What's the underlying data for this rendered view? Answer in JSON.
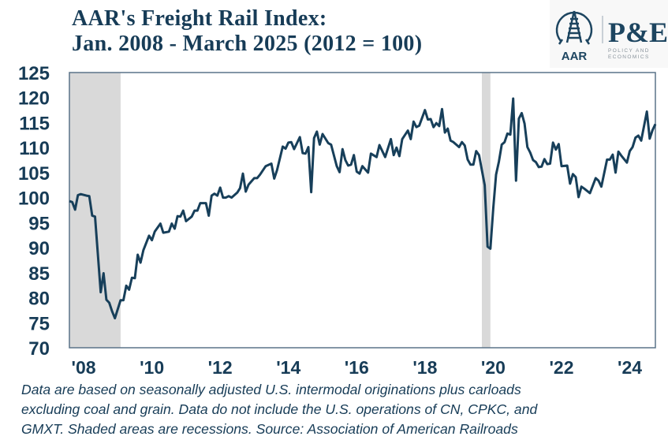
{
  "chart_data": {
    "type": "line",
    "title": [
      "AAR's Freight Rail Index:",
      "Jan. 2008 - March 2025 (2012 = 100)"
    ],
    "xlabel": "",
    "ylabel": "",
    "ylim": [
      70,
      125
    ],
    "xlim": [
      "2008-01",
      "2025-03"
    ],
    "yticks": [
      "125",
      "120",
      "115",
      "110",
      "105",
      "100",
      "95",
      "90",
      "85",
      "80",
      "75",
      "70"
    ],
    "xticks": [
      {
        "year": 2008,
        "label": "'08"
      },
      {
        "year": 2010,
        "label": "'10"
      },
      {
        "year": 2012,
        "label": "'12"
      },
      {
        "year": 2014,
        "label": "'14"
      },
      {
        "year": 2016,
        "label": "'16"
      },
      {
        "year": 2018,
        "label": "'18"
      },
      {
        "year": 2020,
        "label": "'20"
      },
      {
        "year": 2022,
        "label": "'22"
      },
      {
        "year": 2024,
        "label": "'24"
      }
    ],
    "grid": false,
    "legend": "none",
    "line_color": "#173f5a",
    "recession_color": "#d9d9d9",
    "recessions": [
      [
        "2008-01",
        "2009-06"
      ],
      [
        "2020-02",
        "2020-04"
      ]
    ],
    "series": [
      {
        "x": [
          "2008-01",
          "2008-02",
          "2008-03",
          "2008-04",
          "2008-05",
          "2008-07",
          "2008-08",
          "2008-09",
          "2008-10",
          "2008-12",
          "2009-01",
          "2009-02",
          "2009-03",
          "2009-04",
          "2009-05",
          "2009-07",
          "2009-08",
          "2009-09",
          "2009-10",
          "2009-11",
          "2009-12",
          "2010-01",
          "2010-02",
          "2010-03",
          "2010-05",
          "2010-06",
          "2010-07",
          "2010-09",
          "2010-10",
          "2010-12",
          "2011-01",
          "2011-02",
          "2011-03",
          "2011-04",
          "2011-05",
          "2011-06",
          "2011-08",
          "2011-09",
          "2011-10",
          "2011-11",
          "2012-01",
          "2012-02",
          "2012-03",
          "2012-04",
          "2012-05",
          "2012-06",
          "2012-07",
          "2012-08",
          "2012-09",
          "2012-10",
          "2012-12",
          "2013-01",
          "2013-02",
          "2013-03",
          "2013-04",
          "2013-06",
          "2013-07",
          "2013-08",
          "2013-10",
          "2013-12",
          "2014-01",
          "2014-02",
          "2014-04",
          "2014-05",
          "2014-06",
          "2014-07",
          "2014-08",
          "2014-10",
          "2014-11",
          "2014-12",
          "2015-01",
          "2015-02",
          "2015-03",
          "2015-04",
          "2015-05",
          "2015-06",
          "2015-08",
          "2015-09",
          "2015-11",
          "2015-12",
          "2016-01",
          "2016-02",
          "2016-03",
          "2016-04",
          "2016-05",
          "2016-06",
          "2016-07",
          "2016-08",
          "2016-10",
          "2016-11",
          "2017-01",
          "2017-02",
          "2017-04",
          "2017-06",
          "2017-07",
          "2017-08",
          "2017-09",
          "2017-10",
          "2017-12",
          "2018-01",
          "2018-02",
          "2018-03",
          "2018-04",
          "2018-06",
          "2018-07",
          "2018-08",
          "2018-09",
          "2018-10",
          "2018-11",
          "2018-12",
          "2019-01",
          "2019-02",
          "2019-03",
          "2019-04",
          "2019-06",
          "2019-07",
          "2019-08",
          "2019-09",
          "2019-10",
          "2019-11",
          "2019-12",
          "2020-01",
          "2020-03",
          "2020-04",
          "2020-05",
          "2020-06",
          "2020-07",
          "2020-08",
          "2020-09",
          "2020-10",
          "2020-11",
          "2020-12",
          "2021-01",
          "2021-02",
          "2021-03",
          "2021-04",
          "2021-05",
          "2021-06",
          "2021-07",
          "2021-08",
          "2021-09",
          "2021-10",
          "2021-11",
          "2021-12",
          "2022-01",
          "2022-02",
          "2022-03",
          "2022-04",
          "2022-05",
          "2022-06",
          "2022-08",
          "2022-09",
          "2022-10",
          "2022-11",
          "2022-12",
          "2023-01",
          "2023-02",
          "2023-04",
          "2023-06",
          "2023-07",
          "2023-08",
          "2023-10",
          "2023-11",
          "2023-12",
          "2024-01",
          "2024-02",
          "2024-03",
          "2024-05",
          "2024-06",
          "2024-07",
          "2024-08",
          "2024-09",
          "2024-10",
          "2024-12",
          "2025-01",
          "2025-02",
          "2025-03"
        ],
        "y": [
          99.3,
          99.1,
          97.6,
          100.5,
          100.7,
          100.4,
          100.3,
          96.4,
          96.2,
          81.1,
          84.9,
          79.6,
          79.0,
          77.3,
          75.9,
          79.5,
          79.5,
          82.4,
          81.6,
          84.0,
          83.9,
          88.6,
          87.0,
          89.5,
          92.4,
          91.5,
          93.2,
          94.8,
          93.0,
          93.2,
          94.8,
          93.8,
          96.3,
          96.2,
          97.4,
          95.3,
          96.2,
          97.4,
          97.4,
          98.9,
          98.9,
          96.4,
          100.4,
          100.8,
          100.4,
          102.0,
          100.0,
          100.0,
          100.3,
          100.0,
          101.0,
          101.9,
          104.8,
          101.2,
          102.6,
          103.9,
          103.9,
          104.6,
          106.3,
          106.8,
          103.8,
          105.5,
          110.2,
          109.8,
          111.0,
          111.1,
          109.7,
          112.1,
          108.9,
          108.8,
          110.1,
          101.1,
          111.9,
          113.2,
          110.6,
          112.7,
          110.9,
          110.6,
          106.3,
          105.1,
          109.7,
          107.5,
          106.4,
          106.6,
          108.5,
          105.2,
          104.8,
          106.3,
          105.0,
          108.8,
          108.1,
          110.5,
          108.1,
          111.7,
          108.5,
          110.0,
          108.3,
          111.7,
          113.4,
          111.7,
          115.2,
          114.1,
          114.4,
          117.5,
          115.6,
          115.7,
          114.1,
          114.9,
          114.3,
          117.7,
          113.0,
          113.8,
          111.4,
          111.1,
          110.1,
          111.1,
          110.4,
          107.6,
          106.6,
          106.6,
          109.3,
          108.5,
          102.5,
          90.2,
          89.8,
          97.8,
          104.6,
          107.2,
          110.6,
          111.1,
          112.8,
          112.6,
          119.8,
          103.4,
          115.8,
          116.9,
          114.8,
          110.1,
          109.0,
          107.5,
          107.1,
          106.1,
          106.2,
          107.7,
          106.7,
          106.8,
          111.0,
          109.6,
          110.7,
          106.3,
          106.4,
          102.8,
          104.7,
          104.1,
          100.1,
          102.2,
          101.8,
          100.9,
          103.9,
          103.4,
          102.2,
          107.6,
          107.6,
          108.6,
          105.0,
          109.2,
          108.4,
          107.0,
          109.3,
          110.1,
          112.0,
          112.4,
          111.4,
          117.2,
          111.8,
          113.5,
          114.7
        ]
      }
    ],
    "note": [
      "Data are based on seasonally adjusted U.S. intermodal originations plus carloads",
      "excluding coal and grain. Data do not include the U.S. operations of CN, CPKC, and",
      "GMXT. Shaded areas are recessions. Source: Association of American Railroads"
    ]
  },
  "logo": {
    "left_text": "AAR",
    "right_text": "P&E",
    "right_subtext": [
      "POLICY AND",
      "ECONOMICS"
    ]
  }
}
